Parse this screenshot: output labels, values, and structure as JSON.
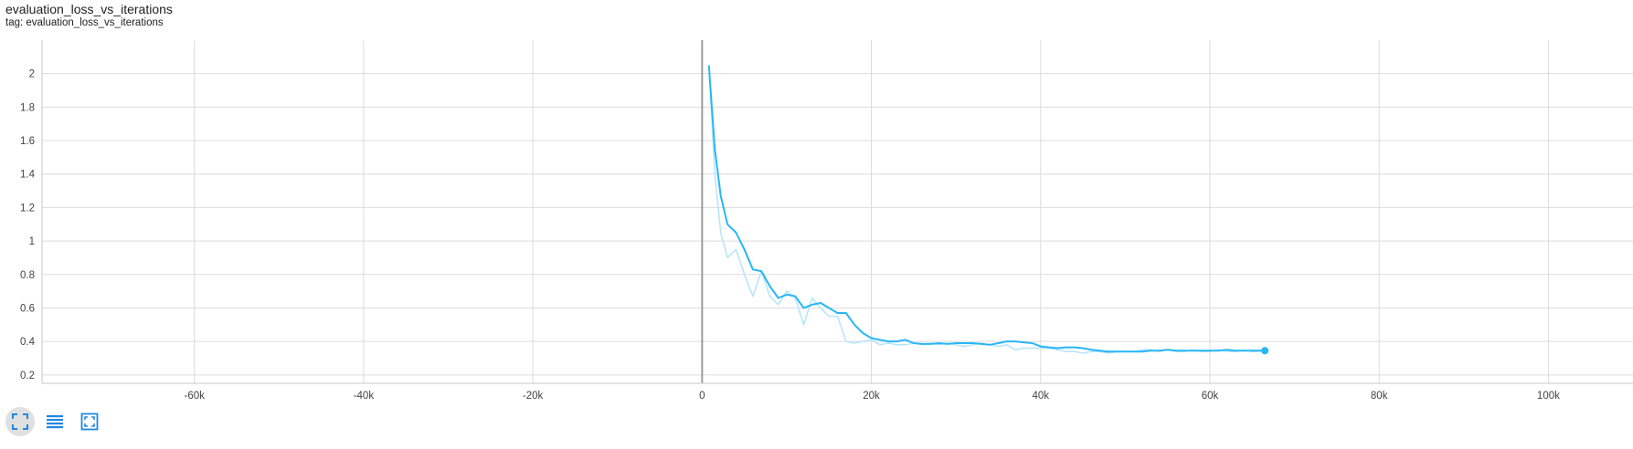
{
  "card": {
    "title": "evaluation_loss_vs_iterations",
    "tag": "tag: evaluation_loss_vs_iterations"
  },
  "toolbar": {
    "buttons": [
      {
        "icon": "fit-domain-icon",
        "active": true
      },
      {
        "icon": "toggle-log-scale-icon",
        "active": false
      },
      {
        "icon": "toggle-zoom-icon",
        "active": false
      }
    ],
    "accent_color": "#1e88e5"
  },
  "chart_data": {
    "type": "line",
    "title": "",
    "xlabel": "",
    "ylabel": "",
    "xlim": [
      -78000,
      110000
    ],
    "ylim": [
      0.15,
      2.2
    ],
    "x_ticks": [
      -60000,
      -40000,
      -20000,
      0,
      20000,
      40000,
      60000,
      80000,
      100000
    ],
    "x_tick_labels": [
      "-60k",
      "-40k",
      "-20k",
      "0",
      "20k",
      "40k",
      "60k",
      "80k",
      "100k"
    ],
    "y_ticks": [
      0.2,
      0.4,
      0.6,
      0.8,
      1,
      1.2,
      1.4,
      1.6,
      1.8,
      2
    ],
    "y_tick_labels": [
      "0.2",
      "0.4",
      "0.6",
      "0.8",
      "1",
      "1.2",
      "1.4",
      "1.6",
      "1.8",
      "2"
    ],
    "grid": true,
    "series": [
      {
        "role": "raw",
        "color": "#b3e5fc",
        "x": [
          800,
          1500,
          2200,
          3000,
          4000,
          5000,
          6000,
          7000,
          8000,
          9000,
          10000,
          11000,
          12000,
          13000,
          14000,
          15000,
          16000,
          17000,
          18000,
          19000,
          20000,
          21000,
          22000,
          23000,
          24000,
          25000,
          26000,
          27000,
          28000,
          29000,
          30000,
          31000,
          32000,
          33000,
          34000,
          35000,
          36000,
          37000,
          38000,
          39000,
          40000,
          41000,
          42000,
          43000,
          44000,
          45000,
          46000,
          47000,
          48000,
          49000,
          50000,
          51000,
          52000,
          53000,
          54000,
          55000,
          56000,
          57000,
          58000,
          59000,
          60000,
          61000,
          62000,
          63000,
          64000,
          65000,
          66500
        ],
        "y": [
          2.05,
          1.4,
          1.05,
          0.9,
          0.95,
          0.8,
          0.67,
          0.82,
          0.67,
          0.62,
          0.7,
          0.66,
          0.5,
          0.66,
          0.6,
          0.55,
          0.55,
          0.4,
          0.39,
          0.4,
          0.41,
          0.38,
          0.39,
          0.38,
          0.38,
          0.39,
          0.38,
          0.39,
          0.38,
          0.39,
          0.38,
          0.37,
          0.38,
          0.39,
          0.38,
          0.37,
          0.38,
          0.35,
          0.36,
          0.36,
          0.36,
          0.36,
          0.35,
          0.34,
          0.34,
          0.33,
          0.34,
          0.34,
          0.33,
          0.34,
          0.34,
          0.34,
          0.35,
          0.35,
          0.34,
          0.35,
          0.34,
          0.34,
          0.35,
          0.34,
          0.34,
          0.35,
          0.34,
          0.34,
          0.35,
          0.34,
          0.345
        ]
      },
      {
        "role": "smoothed",
        "color": "#29b6f6",
        "x": [
          800,
          1500,
          2200,
          3000,
          4000,
          5000,
          6000,
          7000,
          8000,
          9000,
          10000,
          11000,
          12000,
          13000,
          14000,
          15000,
          16000,
          17000,
          18000,
          19000,
          20000,
          21000,
          22000,
          23000,
          24000,
          25000,
          26000,
          27000,
          28000,
          29000,
          30000,
          31000,
          32000,
          33000,
          34000,
          35000,
          36000,
          37000,
          38000,
          39000,
          40000,
          41000,
          42000,
          43000,
          44000,
          45000,
          46000,
          47000,
          48000,
          49000,
          50000,
          51000,
          52000,
          53000,
          54000,
          55000,
          56000,
          57000,
          58000,
          59000,
          60000,
          61000,
          62000,
          63000,
          64000,
          65000,
          66500
        ],
        "y": [
          2.05,
          1.55,
          1.27,
          1.1,
          1.05,
          0.95,
          0.83,
          0.82,
          0.73,
          0.66,
          0.68,
          0.67,
          0.6,
          0.62,
          0.63,
          0.6,
          0.57,
          0.57,
          0.5,
          0.45,
          0.42,
          0.41,
          0.4,
          0.4,
          0.41,
          0.39,
          0.385,
          0.385,
          0.39,
          0.385,
          0.39,
          0.39,
          0.39,
          0.385,
          0.38,
          0.39,
          0.4,
          0.4,
          0.395,
          0.39,
          0.37,
          0.365,
          0.36,
          0.365,
          0.365,
          0.36,
          0.35,
          0.345,
          0.34,
          0.34,
          0.34,
          0.34,
          0.34,
          0.345,
          0.345,
          0.35,
          0.345,
          0.345,
          0.345,
          0.345,
          0.345,
          0.345,
          0.35,
          0.345,
          0.345,
          0.345,
          0.345
        ]
      }
    ]
  }
}
